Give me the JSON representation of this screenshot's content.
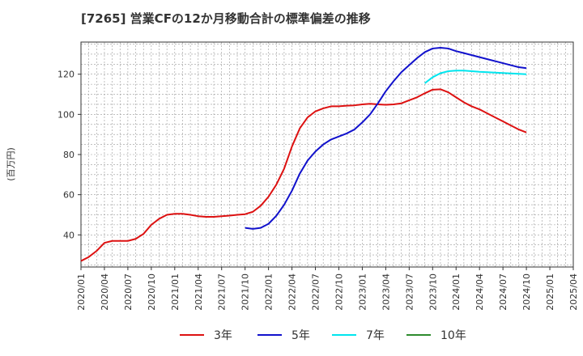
{
  "chart_data": {
    "type": "line",
    "title": "[7265]  営業CFの12か月移動合計の標準偏差の推移",
    "ylabel": "(百万円)",
    "xlabel": "",
    "ylim": [
      24,
      136
    ],
    "yticks": [
      40,
      60,
      80,
      100,
      120
    ],
    "xlim": [
      "2020-01",
      "2025-04"
    ],
    "xtick_labels": [
      "2020/01",
      "2020/04",
      "2020/07",
      "2020/10",
      "2021/01",
      "2021/04",
      "2021/07",
      "2021/10",
      "2022/01",
      "2022/04",
      "2022/07",
      "2022/10",
      "2023/01",
      "2023/04",
      "2023/07",
      "2023/10",
      "2024/01",
      "2024/04",
      "2024/07",
      "2024/10",
      "2025/01",
      "2025/04"
    ],
    "grid": true,
    "legend_position": "bottom",
    "series": [
      {
        "name": "3年",
        "color": "#dd1111",
        "points": [
          [
            "2020-01",
            27
          ],
          [
            "2020-02",
            29
          ],
          [
            "2020-03",
            32
          ],
          [
            "2020-04",
            36
          ],
          [
            "2020-05",
            37
          ],
          [
            "2020-06",
            37
          ],
          [
            "2020-07",
            37
          ],
          [
            "2020-08",
            38
          ],
          [
            "2020-09",
            40.5
          ],
          [
            "2020-10",
            45
          ],
          [
            "2020-11",
            48
          ],
          [
            "2020-12",
            50
          ],
          [
            "2021-01",
            50.5
          ],
          [
            "2021-02",
            50.5
          ],
          [
            "2021-03",
            50
          ],
          [
            "2021-04",
            49.3
          ],
          [
            "2021-05",
            49
          ],
          [
            "2021-06",
            49
          ],
          [
            "2021-07",
            49.3
          ],
          [
            "2021-08",
            49.6
          ],
          [
            "2021-09",
            50
          ],
          [
            "2021-10",
            50.3
          ],
          [
            "2021-11",
            51.5
          ],
          [
            "2021-12",
            54.5
          ],
          [
            "2022-01",
            59
          ],
          [
            "2022-02",
            65
          ],
          [
            "2022-03",
            73
          ],
          [
            "2022-04",
            84
          ],
          [
            "2022-05",
            93
          ],
          [
            "2022-06",
            98.5
          ],
          [
            "2022-07",
            101.5
          ],
          [
            "2022-08",
            103
          ],
          [
            "2022-09",
            104
          ],
          [
            "2022-10",
            104
          ],
          [
            "2022-11",
            104.3
          ],
          [
            "2022-12",
            104.5
          ],
          [
            "2023-01",
            105
          ],
          [
            "2023-02",
            105.3
          ],
          [
            "2023-03",
            105
          ],
          [
            "2023-04",
            104.8
          ],
          [
            "2023-05",
            105
          ],
          [
            "2023-06",
            105.5
          ],
          [
            "2023-07",
            107
          ],
          [
            "2023-08",
            108.5
          ],
          [
            "2023-09",
            110.5
          ],
          [
            "2023-10",
            112.3
          ],
          [
            "2023-11",
            112.5
          ],
          [
            "2023-12",
            111
          ],
          [
            "2024-01",
            108.5
          ],
          [
            "2024-02",
            106
          ],
          [
            "2024-03",
            104
          ],
          [
            "2024-04",
            102.5
          ],
          [
            "2024-05",
            100.5
          ],
          [
            "2024-06",
            98.5
          ],
          [
            "2024-07",
            96.5
          ],
          [
            "2024-08",
            94.5
          ],
          [
            "2024-09",
            92.5
          ],
          [
            "2024-10",
            91
          ]
        ]
      },
      {
        "name": "5年",
        "color": "#1111cc",
        "points": [
          [
            "2021-10",
            43.5
          ],
          [
            "2021-11",
            43
          ],
          [
            "2021-12",
            43.5
          ],
          [
            "2022-01",
            45.5
          ],
          [
            "2022-02",
            49.5
          ],
          [
            "2022-03",
            55
          ],
          [
            "2022-04",
            62
          ],
          [
            "2022-05",
            70.5
          ],
          [
            "2022-06",
            77
          ],
          [
            "2022-07",
            81.5
          ],
          [
            "2022-08",
            85
          ],
          [
            "2022-09",
            87.5
          ],
          [
            "2022-10",
            89
          ],
          [
            "2022-11",
            90.5
          ],
          [
            "2022-12",
            92.5
          ],
          [
            "2023-01",
            96
          ],
          [
            "2023-02",
            100
          ],
          [
            "2023-03",
            105.5
          ],
          [
            "2023-04",
            111.5
          ],
          [
            "2023-05",
            116.5
          ],
          [
            "2023-06",
            121
          ],
          [
            "2023-07",
            124.5
          ],
          [
            "2023-08",
            128
          ],
          [
            "2023-09",
            131
          ],
          [
            "2023-10",
            132.8
          ],
          [
            "2023-11",
            133.2
          ],
          [
            "2023-12",
            132.8
          ],
          [
            "2024-01",
            131.5
          ],
          [
            "2024-02",
            130.5
          ],
          [
            "2024-03",
            129.5
          ],
          [
            "2024-04",
            128.5
          ],
          [
            "2024-05",
            127.5
          ],
          [
            "2024-06",
            126.5
          ],
          [
            "2024-07",
            125.5
          ],
          [
            "2024-08",
            124.5
          ],
          [
            "2024-09",
            123.5
          ],
          [
            "2024-10",
            123
          ]
        ]
      },
      {
        "name": "7年",
        "color": "#00e5ee",
        "points": [
          [
            "2023-09",
            115.5
          ],
          [
            "2023-10",
            118.5
          ],
          [
            "2023-11",
            120.5
          ],
          [
            "2023-12",
            121.5
          ],
          [
            "2024-01",
            121.8
          ],
          [
            "2024-02",
            121.8
          ],
          [
            "2024-03",
            121.5
          ],
          [
            "2024-04",
            121.2
          ],
          [
            "2024-05",
            121
          ],
          [
            "2024-06",
            120.8
          ],
          [
            "2024-07",
            120.6
          ],
          [
            "2024-08",
            120.4
          ],
          [
            "2024-09",
            120.2
          ],
          [
            "2024-10",
            120
          ]
        ]
      },
      {
        "name": "10年",
        "color": "#2e8b2e",
        "points": []
      }
    ]
  }
}
